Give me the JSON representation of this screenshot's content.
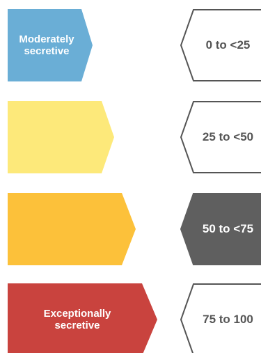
{
  "levels": [
    {
      "label": "Moderately\nsecretive",
      "color": "#6aaed6",
      "range": "0 to <25",
      "highlighted": false
    },
    {
      "label": "",
      "color": "#fde97a",
      "range": "25 to <50",
      "highlighted": false
    },
    {
      "label": "",
      "color": "#fcc13a",
      "range": "50 to <75",
      "highlighted": true
    },
    {
      "label": "Exceptionally\nsecretive",
      "color": "#c9433e",
      "range": "75 to 100",
      "highlighted": false
    }
  ],
  "colors": {
    "range_fill_highlight": "#5f5f5f",
    "range_text_highlight": "#ffffff",
    "range_text": "#555555",
    "range_stroke": "#555555"
  }
}
